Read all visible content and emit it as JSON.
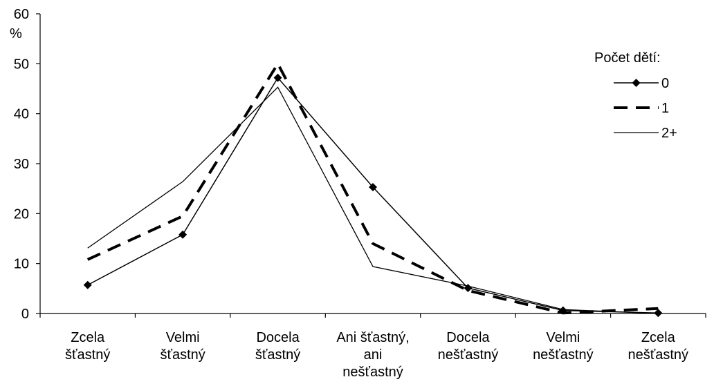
{
  "chart_data": {
    "type": "line",
    "ylabel": "%",
    "ylim": [
      0,
      60
    ],
    "yticks": [
      0,
      10,
      20,
      30,
      40,
      50,
      60
    ],
    "grid": false,
    "legend_position": "top-right",
    "legend_title": "Počet dětí:",
    "categories": [
      [
        "Zcela",
        "šťastný"
      ],
      [
        "Velmi",
        "šťastný"
      ],
      [
        "Docela",
        "šťastný"
      ],
      [
        "Ani šťastný,",
        "ani",
        "nešťastný"
      ],
      [
        "Docela",
        "nešťastný"
      ],
      [
        "Velmi",
        "nešťastný"
      ],
      [
        "Zcela",
        "nešťastný"
      ]
    ],
    "series": [
      {
        "name": "0",
        "style": "diamond-solid",
        "color": "#000000",
        "values": [
          5.7,
          15.8,
          47.2,
          25.3,
          5.1,
          0.6,
          0.1
        ]
      },
      {
        "name": "1",
        "style": "dashed",
        "color": "#000000",
        "values": [
          10.8,
          19.5,
          50.0,
          14.0,
          4.6,
          0.1,
          1.0
        ]
      },
      {
        "name": "2+",
        "style": "thin-solid",
        "color": "#000000",
        "values": [
          13.1,
          26.4,
          45.3,
          9.4,
          5.5,
          0.8,
          0.0
        ]
      }
    ]
  }
}
